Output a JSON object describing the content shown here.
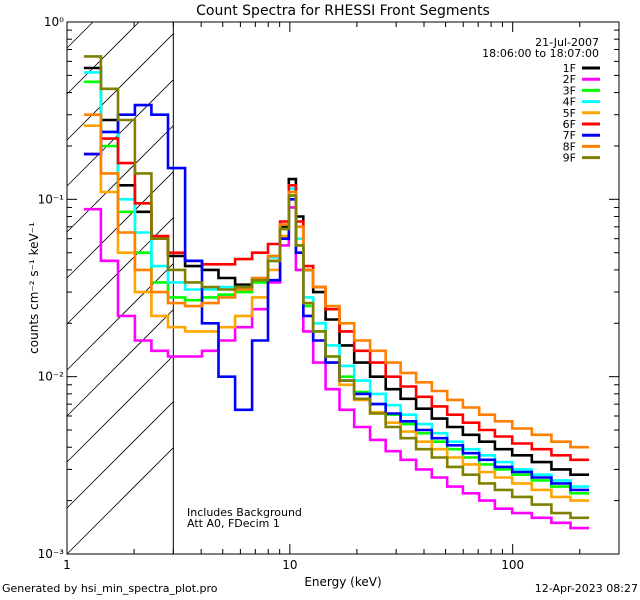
{
  "chart_data": {
    "type": "line",
    "title": "Count Spectra for RHESSI Front Segments",
    "xlabel": "Energy (keV)",
    "ylabel": "counts cm⁻² s⁻¹ keV⁻¹",
    "xscale": "log",
    "yscale": "log",
    "xlim": [
      1,
      300
    ],
    "ylim": [
      0.001,
      1
    ],
    "x_ticks": [
      {
        "value": 1,
        "label": "1"
      },
      {
        "value": 10,
        "label": "10"
      },
      {
        "value": 100,
        "label": "100"
      }
    ],
    "y_ticks": [
      {
        "value": 1,
        "label": "10⁰"
      },
      {
        "value": 0.1,
        "label": "10⁻¹"
      },
      {
        "value": 0.01,
        "label": "10⁻²"
      },
      {
        "value": 0.001,
        "label": "10⁻³"
      }
    ],
    "date": "21-Jul-2007",
    "time_range": "18:06:00 to 18:07:00",
    "hatched_region": {
      "x_min": 1,
      "x_max": 3
    },
    "annotations": [
      "Includes Background",
      "Att A0, FDecim 1"
    ],
    "legend_position": "top-right",
    "series": [
      {
        "name": "1F",
        "color": "#000000",
        "values": [
          0.55,
          0.28,
          0.12,
          0.085,
          0.06,
          0.048,
          0.042,
          0.04,
          0.036,
          0.033,
          0.035,
          0.045,
          0.07,
          0.13,
          0.08,
          0.04,
          0.03,
          0.021,
          0.015,
          0.012,
          0.01,
          0.0085,
          0.0075,
          0.0066,
          0.0058,
          0.0052,
          0.0047,
          0.0043,
          0.0039,
          0.0036,
          0.0033,
          0.003,
          0.0028
        ]
      },
      {
        "name": "2F",
        "color": "#ff00ff",
        "values": [
          0.088,
          0.045,
          0.022,
          0.016,
          0.014,
          0.013,
          0.013,
          0.014,
          0.016,
          0.019,
          0.024,
          0.034,
          0.055,
          0.09,
          0.04,
          0.018,
          0.012,
          0.0085,
          0.0065,
          0.0052,
          0.0044,
          0.0038,
          0.0034,
          0.003,
          0.0027,
          0.0024,
          0.0022,
          0.002,
          0.0018,
          0.0017,
          0.0016,
          0.0015,
          0.0014
        ]
      },
      {
        "name": "3F",
        "color": "#00ff00",
        "values": [
          0.46,
          0.2,
          0.085,
          0.05,
          0.034,
          0.028,
          0.027,
          0.028,
          0.029,
          0.03,
          0.034,
          0.045,
          0.068,
          0.105,
          0.055,
          0.025,
          0.018,
          0.013,
          0.01,
          0.0082,
          0.007,
          0.0061,
          0.0054,
          0.0048,
          0.0043,
          0.0039,
          0.0035,
          0.0032,
          0.003,
          0.0028,
          0.0026,
          0.0024,
          0.0022
        ]
      },
      {
        "name": "4F",
        "color": "#00ffff",
        "values": [
          0.52,
          0.24,
          0.1,
          0.065,
          0.042,
          0.034,
          0.031,
          0.031,
          0.032,
          0.032,
          0.036,
          0.047,
          0.072,
          0.115,
          0.06,
          0.028,
          0.02,
          0.015,
          0.0115,
          0.0095,
          0.008,
          0.0069,
          0.0061,
          0.0054,
          0.0048,
          0.0043,
          0.0039,
          0.0036,
          0.0033,
          0.003,
          0.0028,
          0.0026,
          0.0024
        ]
      },
      {
        "name": "5F",
        "color": "#ffa500",
        "values": [
          0.26,
          0.11,
          0.05,
          0.03,
          0.022,
          0.019,
          0.018,
          0.018,
          0.019,
          0.022,
          0.028,
          0.04,
          0.062,
          0.1,
          0.05,
          0.022,
          0.016,
          0.012,
          0.009,
          0.0074,
          0.0063,
          0.0055,
          0.0049,
          0.0043,
          0.0039,
          0.0035,
          0.0032,
          0.0029,
          0.0027,
          0.0025,
          0.0023,
          0.0021,
          0.002
        ]
      },
      {
        "name": "6F",
        "color": "#ff0000",
        "values": [
          0.18,
          0.22,
          0.16,
          0.095,
          0.062,
          0.05,
          0.045,
          0.043,
          0.043,
          0.046,
          0.05,
          0.056,
          0.075,
          0.12,
          0.075,
          0.042,
          0.032,
          0.024,
          0.018,
          0.014,
          0.012,
          0.01,
          0.0088,
          0.0077,
          0.0068,
          0.0061,
          0.0055,
          0.005,
          0.0046,
          0.0042,
          0.0039,
          0.0036,
          0.0034
        ]
      },
      {
        "name": "7F",
        "color": "#0000ff",
        "values": [
          0.18,
          0.24,
          0.3,
          0.34,
          0.3,
          0.15,
          0.045,
          0.02,
          0.01,
          0.0065,
          0.016,
          0.035,
          0.06,
          0.1,
          0.05,
          0.022,
          0.016,
          0.012,
          0.0095,
          0.008,
          0.007,
          0.0062,
          0.0056,
          0.005,
          0.0045,
          0.0041,
          0.0037,
          0.0034,
          0.0031,
          0.0029,
          0.0027,
          0.0025,
          0.0023
        ]
      },
      {
        "name": "8F",
        "color": "#ff7f00",
        "values": [
          0.3,
          0.14,
          0.065,
          0.04,
          0.03,
          0.026,
          0.025,
          0.026,
          0.028,
          0.031,
          0.036,
          0.048,
          0.072,
          0.11,
          0.07,
          0.04,
          0.032,
          0.025,
          0.02,
          0.016,
          0.014,
          0.012,
          0.0105,
          0.0093,
          0.0083,
          0.0074,
          0.0067,
          0.0061,
          0.0056,
          0.0051,
          0.0047,
          0.0043,
          0.004
        ]
      },
      {
        "name": "9F",
        "color": "#808000",
        "values": [
          0.64,
          0.42,
          0.28,
          0.14,
          0.06,
          0.04,
          0.034,
          0.032,
          0.031,
          0.032,
          0.035,
          0.045,
          0.068,
          0.105,
          0.055,
          0.026,
          0.018,
          0.013,
          0.0095,
          0.0075,
          0.0062,
          0.0052,
          0.0045,
          0.0039,
          0.0035,
          0.0031,
          0.0028,
          0.0025,
          0.0023,
          0.0021,
          0.0019,
          0.0017,
          0.0016
        ]
      }
    ],
    "x": [
      1.3,
      1.55,
      1.85,
      2.2,
      2.6,
      3.1,
      3.7,
      4.4,
      5.2,
      6.2,
      7.4,
      8.6,
      9.5,
      10.3,
      11.0,
      12.0,
      13.5,
      15.5,
      18.0,
      21.0,
      25.0,
      29.0,
      34.0,
      40.0,
      47.0,
      55.0,
      65.0,
      77.0,
      90.0,
      110.0,
      135.0,
      165.0,
      200.0
    ]
  },
  "footer": {
    "left": "Generated by hsi_min_spectra_plot.pro",
    "right": "12-Apr-2023 08:27"
  }
}
